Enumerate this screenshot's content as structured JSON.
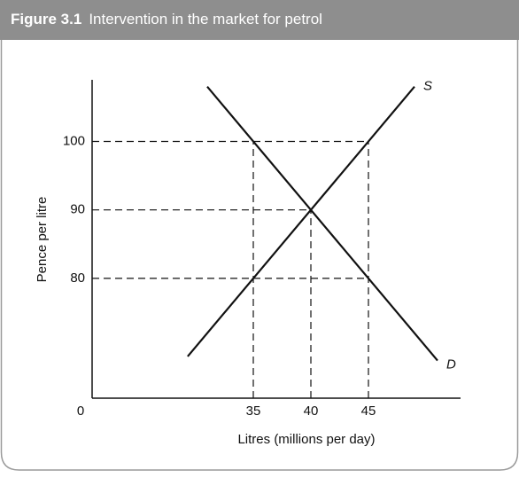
{
  "chart_data": {
    "type": "line",
    "figure_label": "Figure 3.1",
    "title": "Intervention in the market for petrol",
    "x_label": "Litres (millions per day)",
    "y_label": "Pence per litre",
    "origin_label": "0",
    "xlim": [
      21,
      53
    ],
    "ylim": [
      62.5,
      109
    ],
    "xticks": [
      35,
      40,
      45
    ],
    "yticks": [
      80,
      90,
      100
    ],
    "series": [
      {
        "name": "S",
        "color": "#111111",
        "x": [
          29.3,
          49
        ],
        "values": [
          68.6,
          108
        ]
      },
      {
        "name": "D",
        "color": "#111111",
        "x": [
          31,
          51
        ],
        "values": [
          108,
          68
        ]
      }
    ],
    "horizontal_guides": [
      {
        "y": 100,
        "x_end": 45
      },
      {
        "y": 90,
        "x_end": 40
      },
      {
        "y": 80,
        "x_end": 45
      }
    ],
    "vertical_guides": [
      {
        "x": 35,
        "y_end": 100
      },
      {
        "x": 40,
        "y_end": 90
      },
      {
        "x": 45,
        "y_end": 100
      }
    ]
  }
}
